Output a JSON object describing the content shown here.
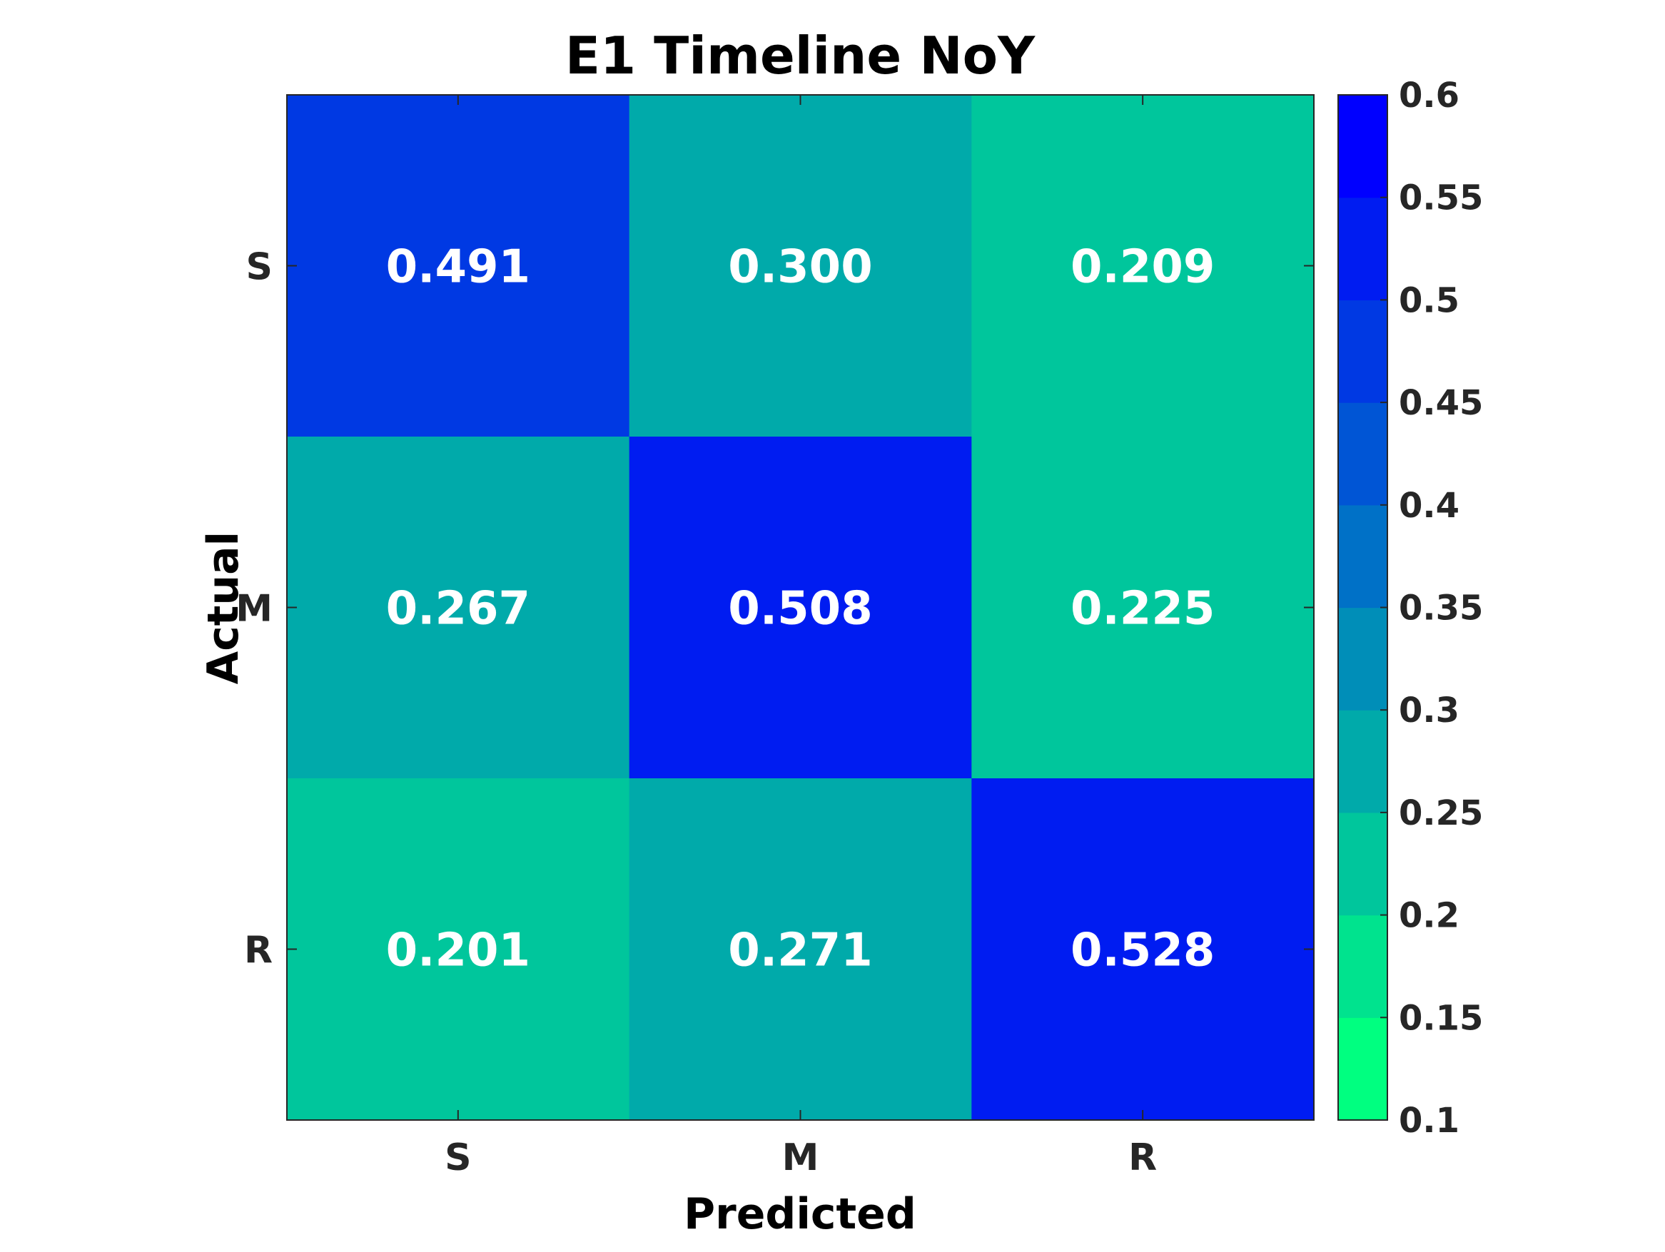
{
  "chart_data": {
    "type": "heatmap",
    "title": "E1 Timeline NoY",
    "xlabel": "Predicted",
    "ylabel": "Actual",
    "x_categories": [
      "S",
      "M",
      "R"
    ],
    "y_categories": [
      "S",
      "M",
      "R"
    ],
    "values": [
      [
        0.491,
        0.3,
        0.209
      ],
      [
        0.267,
        0.508,
        0.225
      ],
      [
        0.201,
        0.271,
        0.528
      ]
    ],
    "value_labels": [
      [
        "0.491",
        "0.300",
        "0.209"
      ],
      [
        "0.267",
        "0.508",
        "0.225"
      ],
      [
        "0.201",
        "0.271",
        "0.528"
      ]
    ],
    "colorbar": {
      "range": [
        0.1,
        0.6
      ],
      "ticks": [
        0.1,
        0.15,
        0.2,
        0.25,
        0.3,
        0.35,
        0.4,
        0.45,
        0.5,
        0.55,
        0.6
      ],
      "tick_labels": [
        "0.1",
        "0.15",
        "0.2",
        "0.25",
        "0.3",
        "0.35",
        "0.4",
        "0.45",
        "0.5",
        "0.55",
        "0.6"
      ],
      "levels": 10,
      "colormap": "winter",
      "color_low": "#00ff80",
      "color_high": "#0000ff",
      "placement": "right"
    },
    "value_label_color": "#ffffff",
    "grid": false
  }
}
